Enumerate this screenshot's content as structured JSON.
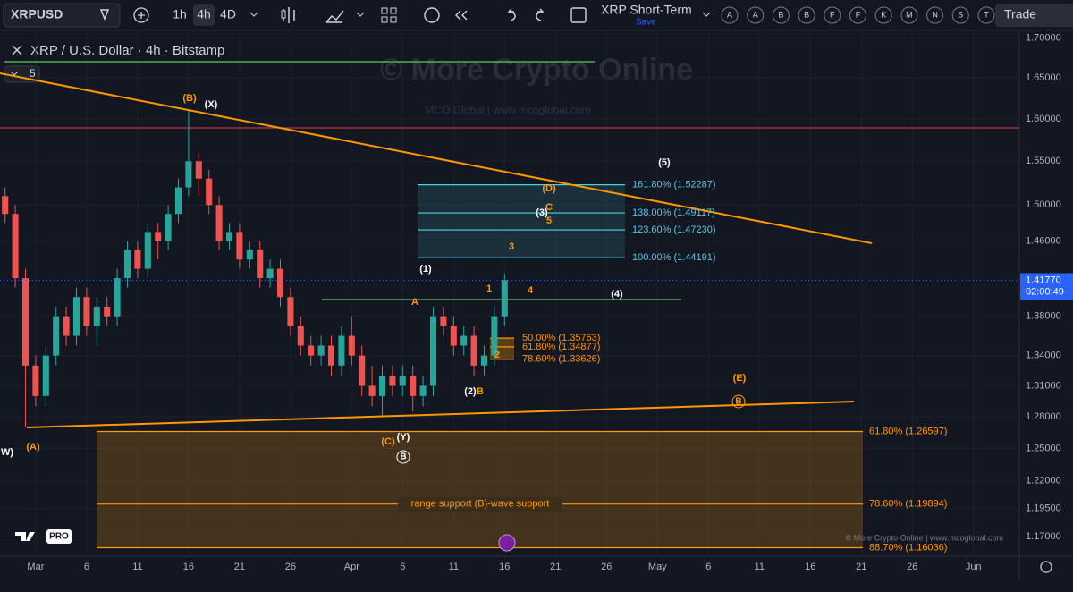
{
  "toolbar": {
    "symbol": "XRPUSD",
    "intervals": [
      "1h",
      "4h",
      "4D"
    ],
    "active_interval": "4h",
    "layout_name": "XRP Short-Term",
    "save": "Save",
    "alerts": [
      "A",
      "A",
      "B",
      "B",
      "F",
      "F",
      "K",
      "M",
      "N",
      "S",
      "T"
    ],
    "trade": "Trade"
  },
  "chart_data": {
    "type": "candlestick",
    "title": "XRP / U.S. Dollar · 4h · Bitstamp",
    "legend_badge": "5",
    "watermark": "© More Crypto Online",
    "watermark_sub": "MCO Global  |  www.mcoglobal.com",
    "copyright": "© More Crypto Online  |  www.mcoglobal.com",
    "logo": "PRO",
    "log_scale": true,
    "up_color": "#26a69a",
    "down_color": "#ef5350",
    "ylim": [
      1.153,
      1.7096
    ],
    "yticks": [
      {
        "value": 1.17,
        "label": "1.17000"
      },
      {
        "value": 1.195,
        "label": "1.19500"
      },
      {
        "value": 1.22,
        "label": "1.22000"
      },
      {
        "value": 1.25,
        "label": "1.25000"
      },
      {
        "value": 1.28,
        "label": "1.28000"
      },
      {
        "value": 1.31,
        "label": "1.31000"
      },
      {
        "value": 1.34,
        "label": "1.34000"
      },
      {
        "value": 1.38,
        "label": "1.38000"
      },
      {
        "value": 1.46,
        "label": "1.46000"
      },
      {
        "value": 1.5,
        "label": "1.50000"
      },
      {
        "value": 1.55,
        "label": "1.55000"
      },
      {
        "value": 1.6,
        "label": "1.60000"
      },
      {
        "value": 1.65,
        "label": "1.65000"
      },
      {
        "value": 1.7,
        "label": "1.70000"
      }
    ],
    "xlim": [
      -3.5,
      96.5
    ],
    "xticks": [
      {
        "value": 0,
        "label": "Mar"
      },
      {
        "value": 5,
        "label": "6"
      },
      {
        "value": 10,
        "label": "11"
      },
      {
        "value": 15,
        "label": "16"
      },
      {
        "value": 20,
        "label": "21"
      },
      {
        "value": 25,
        "label": "26"
      },
      {
        "value": 31,
        "label": "Apr"
      },
      {
        "value": 36,
        "label": "6"
      },
      {
        "value": 41,
        "label": "11"
      },
      {
        "value": 46,
        "label": "16"
      },
      {
        "value": 51,
        "label": "21"
      },
      {
        "value": 56,
        "label": "26"
      },
      {
        "value": 61,
        "label": "May"
      },
      {
        "value": 66,
        "label": "6"
      },
      {
        "value": 71,
        "label": "11"
      },
      {
        "value": 76,
        "label": "16"
      },
      {
        "value": 81,
        "label": "21"
      },
      {
        "value": 86,
        "label": "26"
      },
      {
        "value": 92,
        "label": "Jun"
      }
    ],
    "x": [
      -3,
      -2,
      -1,
      0,
      1,
      2,
      3,
      4,
      5,
      6,
      7,
      8,
      9,
      10,
      11,
      12,
      13,
      14,
      15,
      16,
      17,
      18,
      19,
      20,
      21,
      22,
      23,
      24,
      25,
      26,
      27,
      28,
      29,
      30,
      31,
      32,
      33,
      34,
      35,
      36,
      37,
      38,
      39,
      40,
      41,
      42,
      43,
      44,
      45,
      46
    ],
    "open": [
      1.51,
      1.49,
      1.42,
      1.33,
      1.3,
      1.34,
      1.38,
      1.36,
      1.4,
      1.37,
      1.39,
      1.38,
      1.42,
      1.45,
      1.43,
      1.47,
      1.46,
      1.49,
      1.52,
      1.55,
      1.53,
      1.5,
      1.46,
      1.47,
      1.44,
      1.45,
      1.42,
      1.43,
      1.4,
      1.37,
      1.35,
      1.34,
      1.35,
      1.33,
      1.36,
      1.34,
      1.31,
      1.3,
      1.32,
      1.31,
      1.32,
      1.3,
      1.31,
      1.38,
      1.37,
      1.35,
      1.36,
      1.33,
      1.34,
      1.38
    ],
    "high": [
      1.52,
      1.5,
      1.43,
      1.34,
      1.35,
      1.39,
      1.39,
      1.41,
      1.41,
      1.4,
      1.4,
      1.43,
      1.46,
      1.46,
      1.48,
      1.48,
      1.5,
      1.53,
      1.61,
      1.56,
      1.54,
      1.51,
      1.48,
      1.48,
      1.46,
      1.46,
      1.44,
      1.44,
      1.41,
      1.38,
      1.36,
      1.36,
      1.36,
      1.37,
      1.38,
      1.35,
      1.33,
      1.33,
      1.33,
      1.33,
      1.33,
      1.32,
      1.39,
      1.39,
      1.38,
      1.37,
      1.37,
      1.35,
      1.39,
      1.425
    ],
    "low": [
      1.48,
      1.41,
      1.27,
      1.29,
      1.29,
      1.33,
      1.35,
      1.35,
      1.36,
      1.35,
      1.37,
      1.37,
      1.41,
      1.42,
      1.42,
      1.44,
      1.45,
      1.48,
      1.51,
      1.51,
      1.49,
      1.45,
      1.45,
      1.43,
      1.43,
      1.41,
      1.41,
      1.39,
      1.36,
      1.34,
      1.33,
      1.33,
      1.32,
      1.32,
      1.33,
      1.3,
      1.29,
      1.28,
      1.3,
      1.3,
      1.285,
      1.29,
      1.3,
      1.36,
      1.34,
      1.34,
      1.32,
      1.32,
      1.33,
      1.37
    ],
    "close": [
      1.49,
      1.42,
      1.33,
      1.3,
      1.34,
      1.38,
      1.36,
      1.4,
      1.37,
      1.39,
      1.38,
      1.42,
      1.45,
      1.43,
      1.47,
      1.46,
      1.49,
      1.52,
      1.55,
      1.53,
      1.5,
      1.46,
      1.47,
      1.44,
      1.45,
      1.42,
      1.43,
      1.4,
      1.37,
      1.35,
      1.34,
      1.35,
      1.33,
      1.36,
      1.34,
      1.31,
      1.3,
      1.32,
      1.31,
      1.32,
      1.3,
      1.31,
      1.38,
      1.37,
      1.35,
      1.36,
      1.33,
      1.34,
      1.38,
      1.418
    ],
    "last_price": {
      "value": 1.4177,
      "label": "1.41770"
    },
    "countdown": "02:00:49",
    "fib_extension": [
      {
        "value": 1.52287,
        "label": "161.80% (1.52287)"
      },
      {
        "value": 1.49117,
        "label": "138.00% (1.49117)"
      },
      {
        "value": 1.4723,
        "label": "123.60% (1.47230)"
      },
      {
        "value": 1.44191,
        "label": "100.00% (1.44191)"
      }
    ],
    "fib_retracement_short": [
      {
        "value": 1.35763,
        "label": "50.00% (1.35763)"
      },
      {
        "value": 1.34877,
        "label": "61.80% (1.34877)"
      },
      {
        "value": 1.33626,
        "label": "78.60% (1.33626)"
      }
    ],
    "fib_retracement_long": [
      {
        "value": 1.26597,
        "label": "61.80% (1.26597)"
      },
      {
        "value": 1.19894,
        "label": "78.60% (1.19894)"
      },
      {
        "value": 1.16036,
        "label": "88.70% (1.16036)"
      }
    ],
    "support_label": "range support (B)-wave support",
    "annotations": [
      {
        "text": "(B)",
        "color": "#ff9800"
      },
      {
        "text": "(X)",
        "color": "#ffffff"
      },
      {
        "text": "(5)",
        "color": "#ffffff"
      },
      {
        "text": "(D)",
        "color": "#ff9800"
      },
      {
        "text": "C",
        "color": "#ff9800"
      },
      {
        "text": "(3)",
        "color": "#ffffff"
      },
      {
        "text": "5",
        "color": "#ff9800"
      },
      {
        "text": "3",
        "color": "#ff9800"
      },
      {
        "text": "(1)",
        "color": "#ffffff"
      },
      {
        "text": "1",
        "color": "#ff9800"
      },
      {
        "text": "4",
        "color": "#ff9800"
      },
      {
        "text": "(4)",
        "color": "#ffffff"
      },
      {
        "text": "A",
        "color": "#ff9800"
      },
      {
        "text": "2",
        "color": "#ff9800"
      },
      {
        "text": "(2)",
        "color": "#ffffff"
      },
      {
        "text": "B",
        "color": "#ff9800"
      },
      {
        "text": "(E)",
        "color": "#ff9800"
      },
      {
        "text": "B",
        "color": "#ff9800"
      },
      {
        "text": "(A)",
        "color": "#ff9800"
      },
      {
        "text": "W)",
        "color": "#ffffff"
      },
      {
        "text": "(C)",
        "color": "#ff9800"
      },
      {
        "text": "(Y)",
        "color": "#ffffff"
      },
      {
        "text": "B",
        "color": "#ffffff"
      }
    ]
  }
}
